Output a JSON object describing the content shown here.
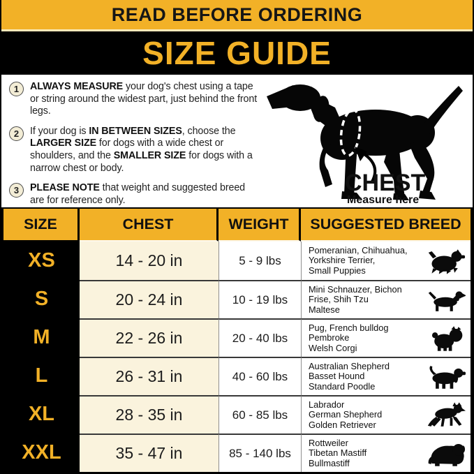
{
  "banner": {
    "read_before": "READ BEFORE ORDERING",
    "title": "SIZE GUIDE"
  },
  "instructions": [
    {
      "number": "1",
      "segments": [
        {
          "text": "ALWAYS MEASURE",
          "bold": true
        },
        {
          "text": " your dog's chest using a tape or string around the widest part, just behind the front legs.",
          "bold": false
        }
      ]
    },
    {
      "number": "2",
      "segments": [
        {
          "text": "If your dog is ",
          "bold": false
        },
        {
          "text": "IN BETWEEN SIZES",
          "bold": true
        },
        {
          "text": ", choose the ",
          "bold": false
        },
        {
          "text": "LARGER SIZE",
          "bold": true
        },
        {
          "text": " for dogs with a wide chest or shoulders, and the ",
          "bold": false
        },
        {
          "text": "SMALLER SIZE",
          "bold": true
        },
        {
          "text": " for dogs with a narrow chest or body.",
          "bold": false
        }
      ]
    },
    {
      "number": "3",
      "segments": [
        {
          "text": "PLEASE NOTE",
          "bold": true
        },
        {
          "text": " that weight and suggested breed are for reference only.",
          "bold": false
        }
      ]
    }
  ],
  "diagram": {
    "chest_label": "CHEST",
    "measure_label": "Measure here",
    "dog_icon": "pointer-dog-silhouette-icon",
    "ellipse_icon": "chest-measure-dashed-ellipse",
    "arrow_icon": "curved-arrow-icon"
  },
  "table": {
    "headers": [
      "SIZE",
      "CHEST",
      "WEIGHT",
      "SUGGESTED BREED"
    ],
    "rows": [
      {
        "size": "XS",
        "chest": "14 - 20 in",
        "weight": "5 - 9 lbs",
        "breeds": [
          "Pomeranian, Chihuahua,",
          "Yorkshire Terrier,",
          "Small Puppies"
        ],
        "icon": "yorkshire-terrier-icon"
      },
      {
        "size": "S",
        "chest": "20 - 24 in",
        "weight": "10 - 19 lbs",
        "breeds": [
          "Mini Schnauzer, Bichon",
          "Frise, Shih Tzu",
          "Maltese"
        ],
        "icon": "dachshund-icon"
      },
      {
        "size": "M",
        "chest": "22 - 26 in",
        "weight": "20 - 40 lbs",
        "breeds": [
          "Pug, French bulldog",
          "Pembroke",
          "Welsh Corgi"
        ],
        "icon": "pug-icon"
      },
      {
        "size": "L",
        "chest": "26 - 31 in",
        "weight": "40 - 60 lbs",
        "breeds": [
          "Australian Shepherd",
          "Basset Hound",
          "Standard Poodle"
        ],
        "icon": "basset-hound-icon"
      },
      {
        "size": "XL",
        "chest": "28 - 35 in",
        "weight": "60 - 85 lbs",
        "breeds": [
          "Labrador",
          "German Shepherd",
          "Golden Retriever"
        ],
        "icon": "german-shepherd-icon"
      },
      {
        "size": "XXL",
        "chest": "35 - 47 in",
        "weight": "85 - 140 lbs",
        "breeds": [
          "Rottweiler",
          "Tibetan Mastiff",
          "Bullmastiff"
        ],
        "icon": "mastiff-icon"
      }
    ]
  },
  "colors": {
    "gold": "#F2B127",
    "black": "#000000",
    "cream": "#FAF3DD",
    "paleline": "#F8E9B8",
    "circle": "#F3EDD6",
    "text": "#1A1A1A"
  }
}
